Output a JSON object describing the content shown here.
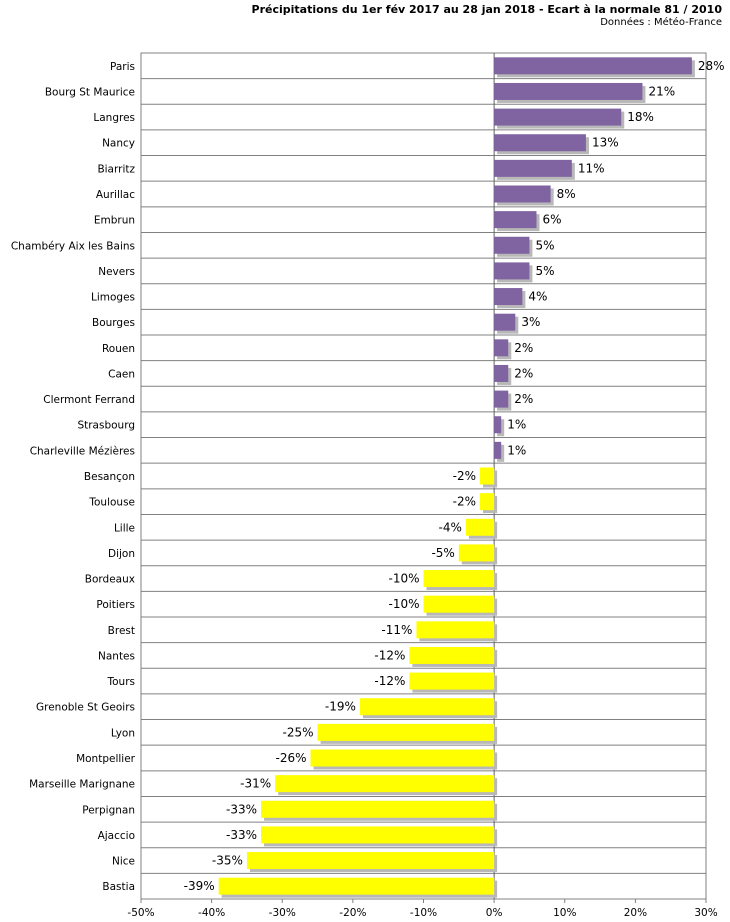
{
  "chart_data": {
    "type": "bar",
    "orientation": "horizontal",
    "title": "Précipitations du 1er fév 2017 au 28 jan 2018 - Ecart à la normale 81 / 2010",
    "source": "Données : Météo-France",
    "categories": [
      "Paris",
      "Bourg St Maurice",
      "Langres",
      "Nancy",
      "Biarritz",
      "Aurillac",
      "Embrun",
      "Chambéry Aix les Bains",
      "Nevers",
      "Limoges",
      "Bourges",
      "Rouen",
      "Caen",
      "Clermont Ferrand",
      "Strasbourg",
      "Charleville Mézières",
      "Besançon",
      "Toulouse",
      "Lille",
      "Dijon",
      "Bordeaux",
      "Poitiers",
      "Brest",
      "Nantes",
      "Tours",
      "Grenoble St Geoirs",
      "Lyon",
      "Montpellier",
      "Marseille Marignane",
      "Perpignan",
      "Ajaccio",
      "Nice",
      "Bastia"
    ],
    "values": [
      28,
      21,
      18,
      13,
      11,
      8,
      6,
      5,
      5,
      4,
      3,
      2,
      2,
      2,
      1,
      1,
      -2,
      -2,
      -4,
      -5,
      -10,
      -10,
      -11,
      -12,
      -12,
      -19,
      -25,
      -26,
      -31,
      -33,
      -33,
      -35,
      -39
    ],
    "value_labels": [
      "28%",
      "21%",
      "18%",
      "13%",
      "11%",
      "8%",
      "6%",
      "5%",
      "5%",
      "4%",
      "3%",
      "2%",
      "2%",
      "2%",
      "1%",
      "1%",
      "-2%",
      "-2%",
      "-4%",
      "-5%",
      "-10%",
      "-10%",
      "-11%",
      "-12%",
      "-12%",
      "-19%",
      "-25%",
      "-26%",
      "-31%",
      "-33%",
      "-33%",
      "-35%",
      "-39%"
    ],
    "xlim": [
      -50,
      30
    ],
    "xticks": [
      -50,
      -40,
      -30,
      -20,
      -10,
      0,
      10,
      20,
      30
    ],
    "xtick_labels": [
      "-50%",
      "-40%",
      "-30%",
      "-20%",
      "-10%",
      "0%",
      "10%",
      "20%",
      "30%"
    ],
    "grid": "horizontal row separators",
    "colors": {
      "positive": "#8064a2",
      "negative": "#ffff00",
      "grid": "#808080",
      "shadow": "#b8b8b8"
    }
  }
}
